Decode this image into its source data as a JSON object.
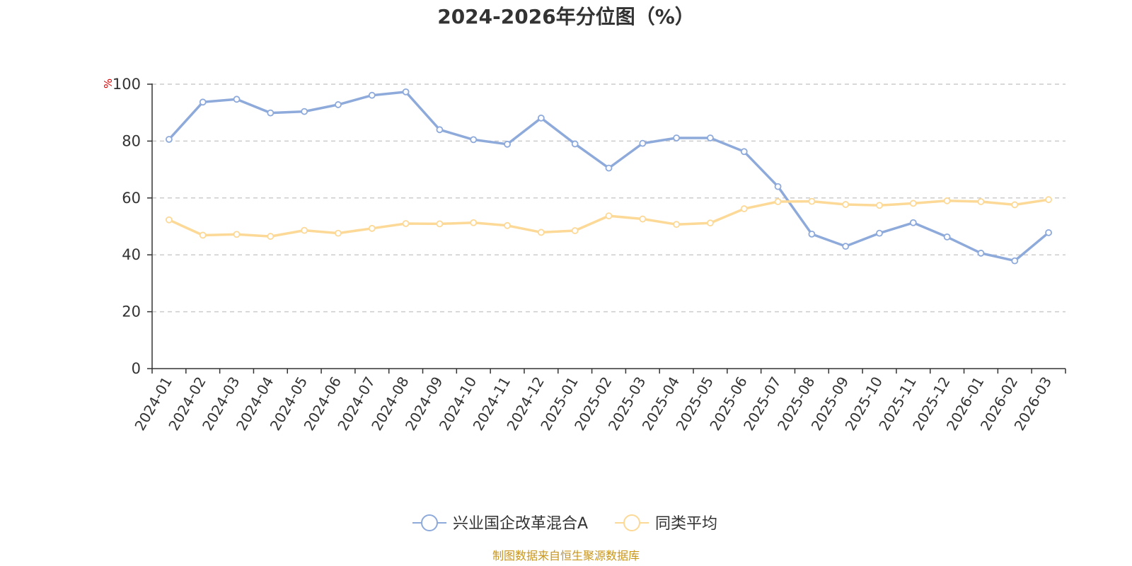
{
  "chart_data": {
    "type": "line",
    "title": "2024-2026年分位图（%）",
    "ylabel": "%",
    "ylim": [
      0,
      100
    ],
    "yticks": [
      0,
      20,
      40,
      60,
      80,
      100
    ],
    "grid": true,
    "legend_position": "bottom",
    "categories": [
      "2024-01",
      "2024-02",
      "2024-03",
      "2024-04",
      "2024-05",
      "2024-06",
      "2024-07",
      "2024-08",
      "2024-09",
      "2024-10",
      "2024-11",
      "2024-12",
      "2025-01",
      "2025-02",
      "2025-03",
      "2025-04",
      "2025-05",
      "2025-06",
      "2025-07",
      "2025-08",
      "2025-09",
      "2025-10",
      "2025-11",
      "2025-12",
      "2026-01",
      "2026-02",
      "2026-03"
    ],
    "series": [
      {
        "name": "兴业国企改革混合A",
        "color": "#8eaadb",
        "values": [
          80.6,
          93.7,
          94.7,
          89.9,
          90.4,
          92.8,
          96.1,
          97.3,
          84.0,
          80.5,
          78.9,
          88.1,
          79.0,
          70.5,
          79.2,
          81.1,
          81.1,
          76.3,
          64.0,
          47.3,
          43.0,
          47.6,
          51.3,
          46.3,
          40.6,
          37.9,
          47.8
        ]
      },
      {
        "name": "同类平均",
        "color": "#fcd997",
        "values": [
          52.3,
          46.9,
          47.2,
          46.5,
          48.6,
          47.6,
          49.3,
          51.0,
          50.9,
          51.3,
          50.3,
          47.9,
          48.5,
          53.7,
          52.6,
          50.7,
          51.2,
          56.2,
          58.7,
          58.8,
          57.7,
          57.4,
          58.1,
          59.0,
          58.7,
          57.6,
          59.4
        ]
      }
    ]
  },
  "source_text": "制图数据来自恒生聚源数据库",
  "colors": {
    "axis": "#333333",
    "grid": "#cccccc",
    "unit": "#e00000",
    "source": "#c8961e"
  }
}
